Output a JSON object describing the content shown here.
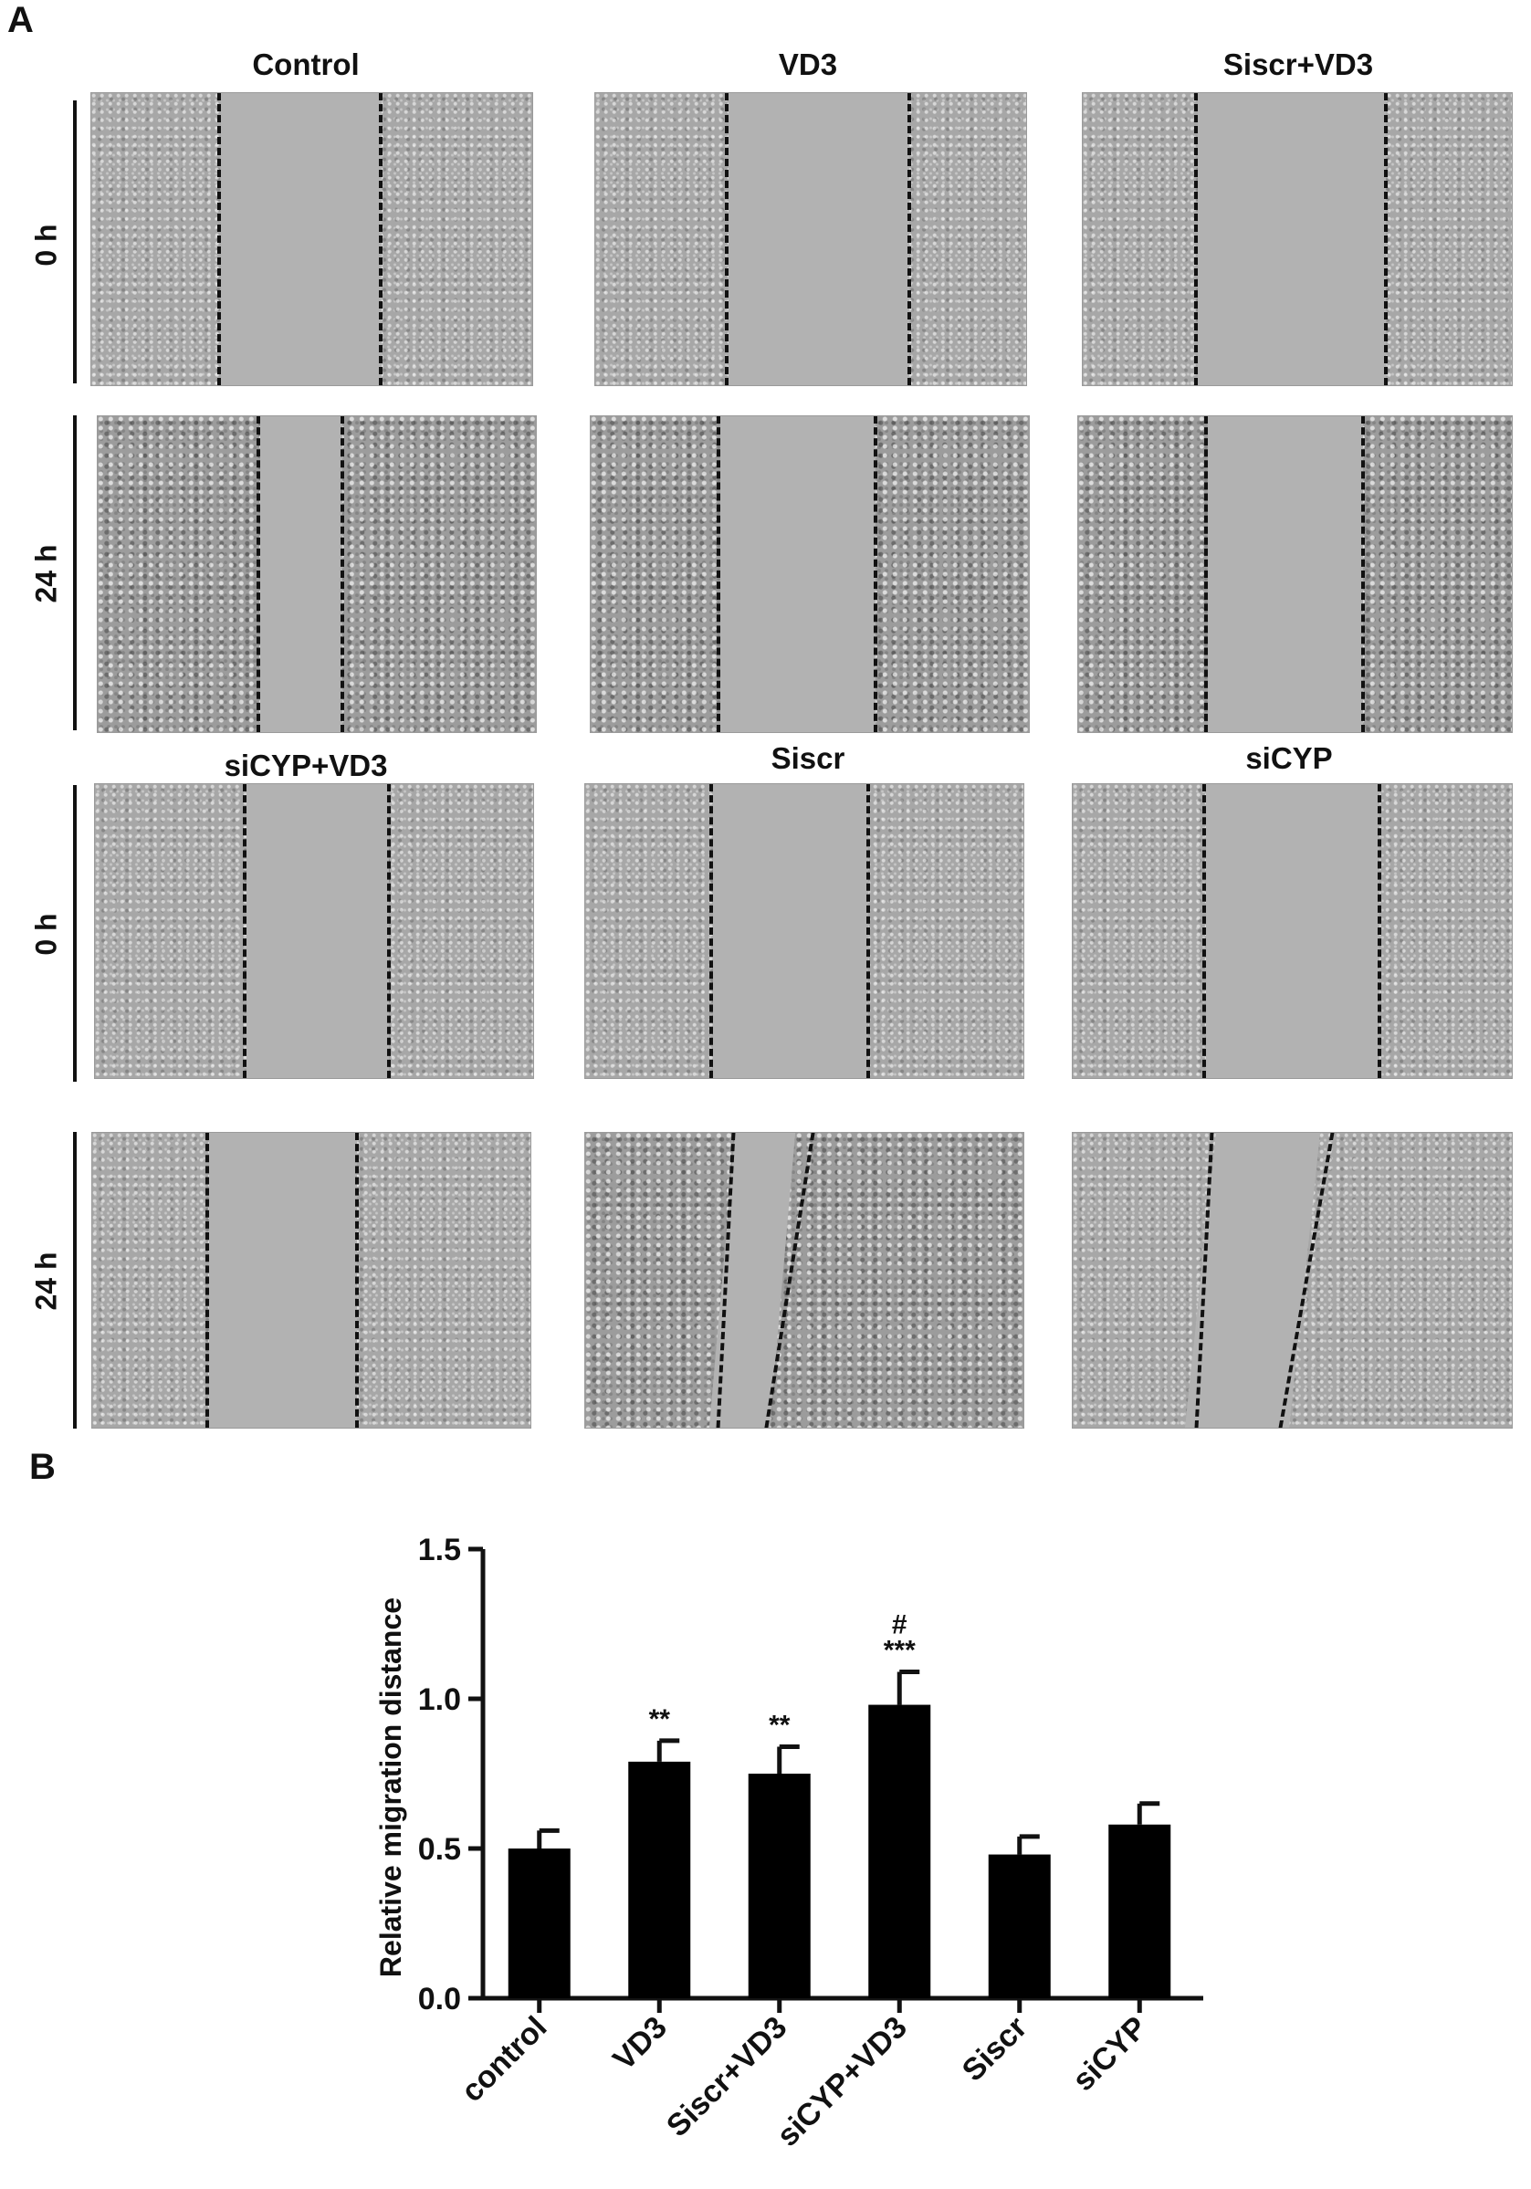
{
  "panel_a": {
    "letter": "A",
    "titles_top": [
      "Control",
      "VD3",
      "Siscr+VD3"
    ],
    "titles_bottom": [
      "siCYP+VD3",
      "Siscr",
      "siCYP"
    ],
    "row_labels": [
      "0 h",
      "24 h",
      "0 h",
      "24 h"
    ]
  },
  "panel_b": {
    "letter": "B"
  },
  "chart_data": {
    "type": "bar",
    "categories": [
      "control",
      "VD3",
      "Siscr+VD3",
      "siCYP+VD3",
      "Siscr",
      "siCYP"
    ],
    "values": [
      0.5,
      0.79,
      0.75,
      0.98,
      0.48,
      0.58
    ],
    "errors": [
      0.06,
      0.07,
      0.09,
      0.11,
      0.06,
      0.07
    ],
    "annotations": [
      "",
      "**",
      "**",
      "#\n***",
      "",
      ""
    ],
    "ylabel": "Relative migration distance",
    "xlabel": "",
    "ylim": [
      0.0,
      1.5
    ],
    "yticks": [
      "0.0",
      "0.5",
      "1.0",
      "1.5"
    ],
    "bar_color": "#000000",
    "grid": false
  }
}
